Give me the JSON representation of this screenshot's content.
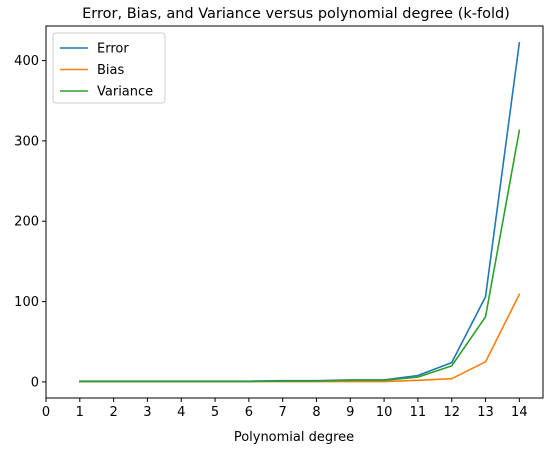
{
  "chart_data": {
    "type": "line",
    "title": "Error, Bias, and Variance versus polynomial degree (k-fold)",
    "xlabel": "Polynomial degree",
    "ylabel": "",
    "xlim": [
      0,
      14.7
    ],
    "ylim": [
      -20,
      443
    ],
    "xticks": [
      0,
      1,
      2,
      3,
      4,
      5,
      6,
      7,
      8,
      9,
      10,
      11,
      12,
      13,
      14
    ],
    "yticks": [
      0,
      100,
      200,
      300,
      400
    ],
    "x": [
      1,
      2,
      3,
      4,
      5,
      6,
      7,
      8,
      9,
      10,
      11,
      12,
      13,
      14
    ],
    "series": [
      {
        "name": "Error",
        "color": "#1f77b4",
        "values": [
          1,
          1,
          1,
          1,
          1,
          1,
          1.5,
          1.5,
          2.5,
          2.5,
          8,
          24,
          106,
          422
        ]
      },
      {
        "name": "Bias",
        "color": "#ff7f0e",
        "values": [
          0.5,
          0.5,
          0.5,
          0.5,
          0.5,
          0.5,
          0.5,
          0.5,
          0.5,
          0.5,
          2,
          4,
          25,
          109
        ]
      },
      {
        "name": "Variance",
        "color": "#2ca02c",
        "values": [
          0.5,
          0.5,
          0.5,
          0.5,
          0.5,
          0.5,
          1,
          1,
          2,
          2,
          6,
          20,
          81,
          313
        ]
      }
    ],
    "legend": "top-left",
    "grid": false
  }
}
